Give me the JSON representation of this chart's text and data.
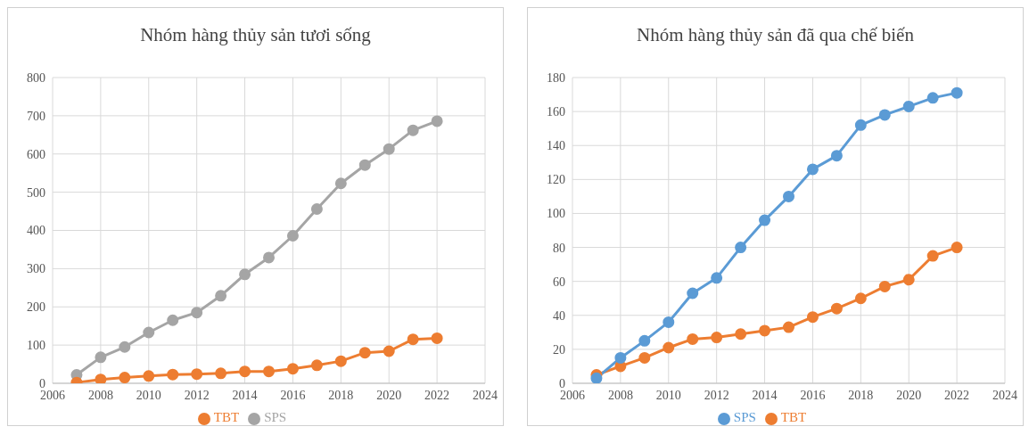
{
  "chart_data": [
    {
      "type": "line",
      "title": "Nhóm hàng thủy sản tươi sống",
      "x": [
        2007,
        2008,
        2009,
        2010,
        2011,
        2012,
        2013,
        2014,
        2015,
        2016,
        2017,
        2018,
        2019,
        2020,
        2021,
        2022
      ],
      "series": [
        {
          "name": "TBT",
          "color": "#ed7d31",
          "values": [
            2,
            10,
            15,
            19,
            23,
            24,
            26,
            31,
            31,
            38,
            47,
            58,
            80,
            84,
            115,
            118
          ]
        },
        {
          "name": "SPS",
          "color": "#a5a5a5",
          "values": [
            22,
            68,
            95,
            133,
            165,
            185,
            229,
            285,
            329,
            386,
            456,
            523,
            571,
            613,
            662,
            686
          ]
        }
      ],
      "xlim": [
        2006,
        2024
      ],
      "xticks": [
        2006,
        2008,
        2010,
        2012,
        2014,
        2016,
        2018,
        2020,
        2022,
        2024
      ],
      "ylim": [
        0,
        800
      ],
      "yticks": [
        0,
        100,
        200,
        300,
        400,
        500,
        600,
        700,
        800
      ],
      "grid": true,
      "legend": "bottom",
      "marker": "circle",
      "line_style": "solid"
    },
    {
      "type": "line",
      "title": "Nhóm hàng thủy sản đã qua chế biến",
      "x": [
        2007,
        2008,
        2009,
        2010,
        2011,
        2012,
        2013,
        2014,
        2015,
        2016,
        2017,
        2018,
        2019,
        2020,
        2021,
        2022
      ],
      "series": [
        {
          "name": "SPS",
          "color": "#5b9bd5",
          "values": [
            3,
            15,
            25,
            36,
            53,
            62,
            80,
            96,
            110,
            126,
            134,
            152,
            158,
            163,
            168,
            171
          ]
        },
        {
          "name": "TBT",
          "color": "#ed7d31",
          "values": [
            5,
            10,
            15,
            21,
            26,
            27,
            29,
            31,
            33,
            39,
            44,
            50,
            57,
            61,
            75,
            80
          ]
        }
      ],
      "xlim": [
        2006,
        2024
      ],
      "xticks": [
        2006,
        2008,
        2010,
        2012,
        2014,
        2016,
        2018,
        2020,
        2022,
        2024
      ],
      "ylim": [
        0,
        180
      ],
      "yticks": [
        0,
        20,
        40,
        60,
        80,
        100,
        120,
        140,
        160,
        180
      ],
      "grid": true,
      "legend": "bottom",
      "marker": "circle",
      "line_style": "solid"
    }
  ]
}
